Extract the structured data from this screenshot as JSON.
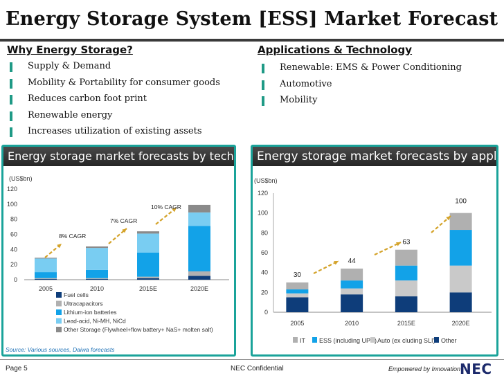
{
  "page": {
    "title": "Energy Storage System [ESS] Market Forecast",
    "left_heading": "Why Energy Storage?",
    "left_bullets": [
      "Supply & Demand",
      "Mobility & Portability for consumer goods",
      "Reduces carbon foot print",
      "Renewable energy",
      "Increases utilization of existing assets"
    ],
    "right_heading": "Applications & Technology",
    "right_bullets": [
      "Renewable: EMS & Power Conditioning",
      "Automotive",
      "Mobility"
    ],
    "source_note": "Source: Various sources, Daiwa forecasts",
    "footer_left": "Page 5",
    "footer_center": "NEC Confidential",
    "footer_tagline": "Empowered by Innovation",
    "footer_logo": "NEC",
    "colors": {
      "accent": "#1aa39a",
      "header_bar": "#333333",
      "navy": "#0e3d7a",
      "blue": "#12a2e8",
      "light_blue": "#79cdf2",
      "grey": "#b0b0b0",
      "light_grey": "#c9c9c9",
      "dark_grey": "#8a8a8a",
      "arrow": "#d4a32a"
    }
  },
  "chart_data": [
    {
      "type": "bar",
      "stacked": true,
      "title": "Energy storage market forecasts by technology",
      "ylabel": "(US$bn)",
      "ylim": [
        0,
        120
      ],
      "yticks": [
        0,
        20,
        40,
        60,
        80,
        100,
        120
      ],
      "categories": [
        "2005",
        "2010",
        "2015E",
        "2020E"
      ],
      "series": [
        {
          "name": "Fuel cells",
          "color": "#0e3d7a",
          "values": [
            1,
            1,
            2,
            5
          ]
        },
        {
          "name": "Ultracapacitors",
          "color": "#b0b0b0",
          "values": [
            1,
            1,
            2,
            6
          ]
        },
        {
          "name": "Lithium-ion batteries",
          "color": "#12a2e8",
          "values": [
            8,
            11,
            32,
            60
          ]
        },
        {
          "name": "Lead-acid, Ni-MH, NiCd",
          "color": "#79cdf2",
          "values": [
            18,
            29,
            25,
            18
          ]
        },
        {
          "name": "Other Storage (Flywheel+flow battery+ NaS+ molten salt)",
          "color": "#8a8a8a",
          "values": [
            1,
            2,
            3,
            10
          ]
        }
      ],
      "annotations": [
        "8% CAGR",
        "7% CAGR",
        "10% CAGR"
      ],
      "legend": "bottom",
      "grid": false
    },
    {
      "type": "bar",
      "stacked": true,
      "title": "Energy storage market forecasts by application",
      "ylabel": "(US$bn)",
      "ylim": [
        0,
        120
      ],
      "yticks": [
        0,
        20,
        40,
        60,
        80,
        100,
        120
      ],
      "categories": [
        "2005",
        "2010",
        "2015E",
        "2020E"
      ],
      "series": [
        {
          "name": "Other",
          "color": "#0e3d7a",
          "values": [
            15,
            18,
            16,
            20
          ]
        },
        {
          "name": "Auto (ex cluding SLI)",
          "color": "#c9c9c9",
          "values": [
            4,
            6,
            16,
            27
          ]
        },
        {
          "name": "ESS (including UPS)",
          "color": "#12a2e8",
          "values": [
            4,
            8,
            15,
            36
          ]
        },
        {
          "name": "IT",
          "color": "#b0b0b0",
          "values": [
            7,
            12,
            16,
            17
          ]
        }
      ],
      "legend_order": [
        "IT",
        "ESS (including UPS)",
        "Auto (ex cluding SLI)",
        "Other"
      ],
      "totals": [
        "30",
        "44",
        "63",
        "100"
      ],
      "legend": "bottom",
      "grid": false
    }
  ]
}
